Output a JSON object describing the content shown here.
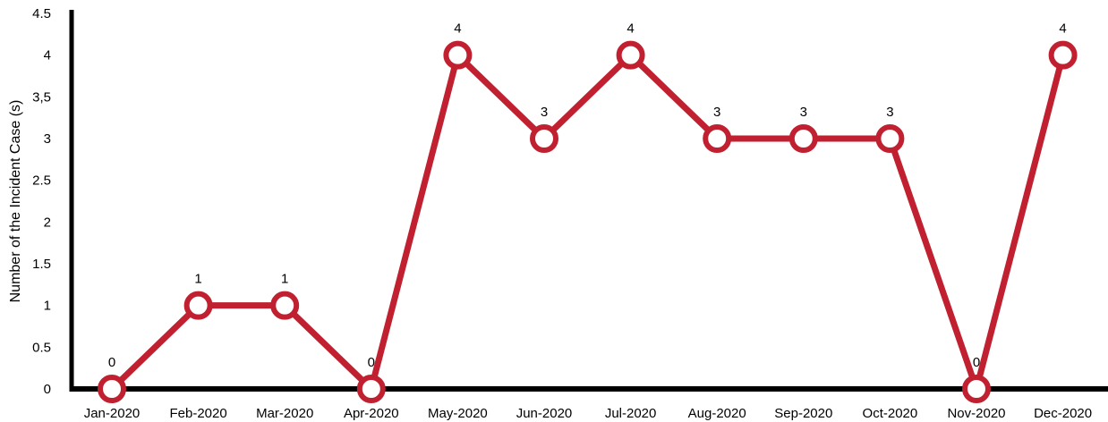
{
  "chart_data": {
    "type": "line",
    "title": "",
    "xlabel": "",
    "ylabel": "Number of the Incident Case (s)",
    "categories": [
      "Jan-2020",
      "Feb-2020",
      "Mar-2020",
      "Apr-2020",
      "May-2020",
      "Jun-2020",
      "Jul-2020",
      "Aug-2020",
      "Sep-2020",
      "Oct-2020",
      "Nov-2020",
      "Dec-2020"
    ],
    "series": [
      {
        "values": [
          0,
          1,
          1,
          0,
          4,
          3,
          4,
          3,
          3,
          3,
          0,
          4
        ],
        "data_labels": [
          "0",
          "1",
          "1",
          "0",
          "4",
          "3",
          "4",
          "3",
          "3",
          "3",
          "0",
          "4"
        ]
      }
    ],
    "ylim": [
      0,
      4.5
    ],
    "y_ticks": [
      0,
      0.5,
      1,
      1.5,
      2,
      2.5,
      3,
      3.5,
      4,
      4.5
    ],
    "y_tick_labels": [
      "0",
      "0.5",
      "1",
      "1.5",
      "2",
      "2.5",
      "3",
      "3,5",
      "4",
      "4.5"
    ],
    "grid": false,
    "colors": {
      "line": "#c0202f",
      "marker_fill": "#ffffff",
      "axis": "#000000"
    }
  }
}
